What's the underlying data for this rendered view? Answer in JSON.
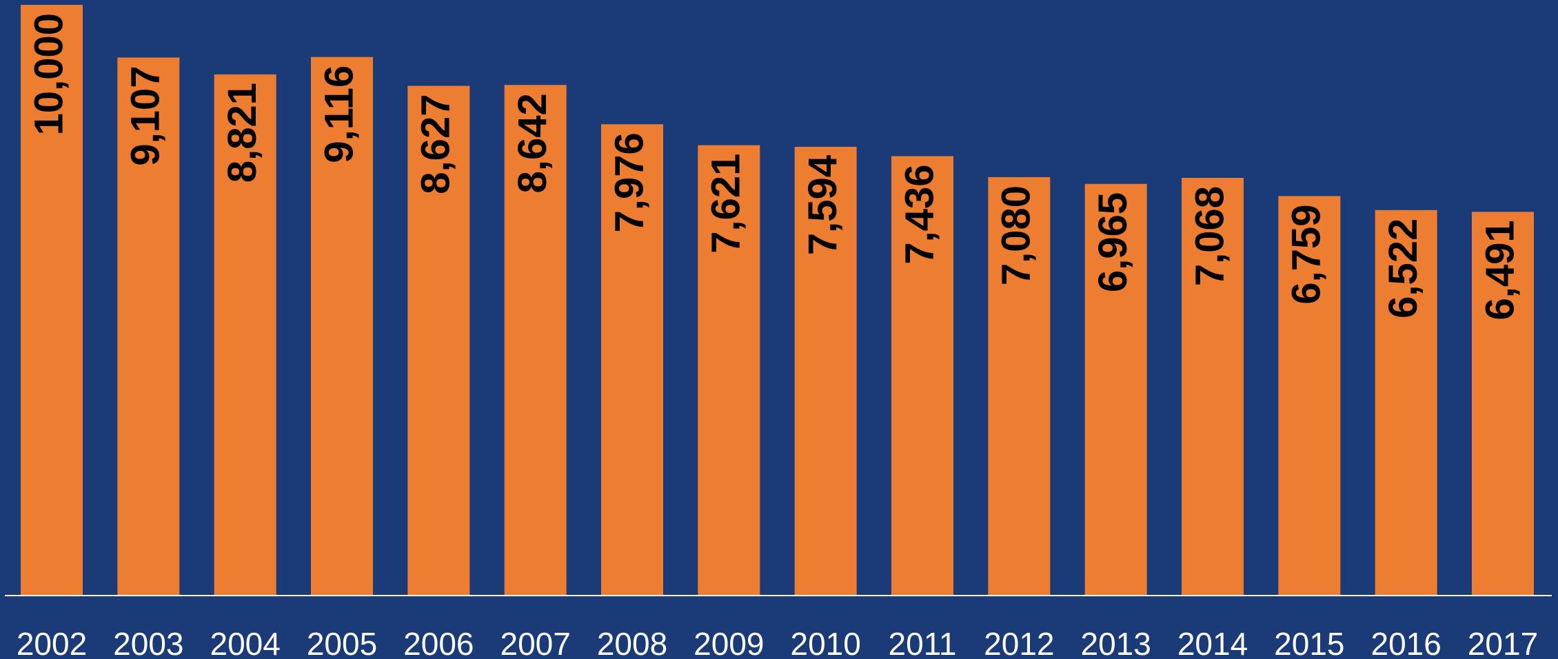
{
  "chart_data": {
    "type": "bar",
    "categories": [
      "2002",
      "2003",
      "2004",
      "2005",
      "2006",
      "2007",
      "2008",
      "2009",
      "2010",
      "2011",
      "2012",
      "2013",
      "2014",
      "2015",
      "2016",
      "2017"
    ],
    "values": [
      10000,
      9107,
      8821,
      9116,
      8627,
      8642,
      7976,
      7621,
      7594,
      7436,
      7080,
      6965,
      7068,
      6759,
      6522,
      6491
    ],
    "value_labels": [
      "10,000",
      "9,107",
      "8,821",
      "9,116",
      "8,627",
      "8,642",
      "7,976",
      "7,621",
      "7,594",
      "7,436",
      "7,080",
      "6,965",
      "7,068",
      "6,759",
      "6,522",
      "6,491"
    ],
    "color": "#ed7d31"
  }
}
